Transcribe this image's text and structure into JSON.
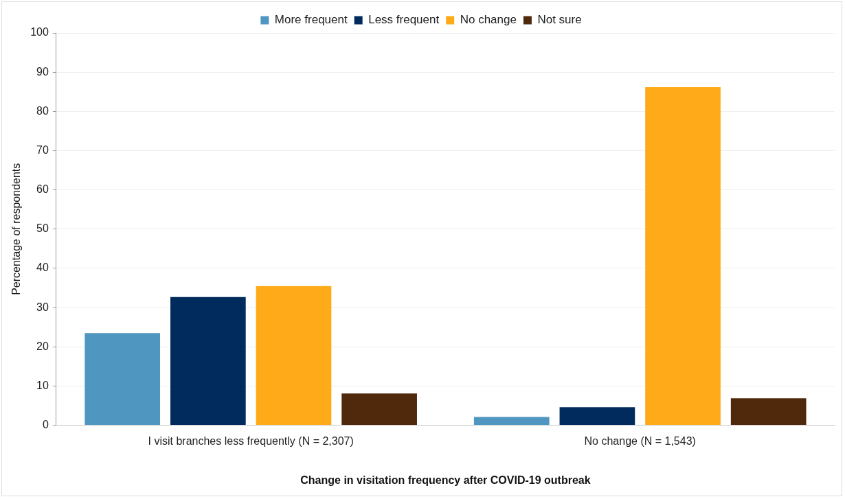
{
  "chart_data": {
    "type": "bar",
    "categories": [
      "I visit branches less frequently (N = 2,307)",
      "No change (N = 1,543)"
    ],
    "series": [
      {
        "name": "More frequent",
        "color": "#4f97c0",
        "values": [
          23.5,
          2.1
        ]
      },
      {
        "name": "Less frequent",
        "color": "#002b5c",
        "values": [
          32.7,
          4.6
        ]
      },
      {
        "name": "No change",
        "color": "#ffab19",
        "values": [
          35.5,
          86.2
        ]
      },
      {
        "name": "Not sure",
        "color": "#50280c",
        "values": [
          8.1,
          6.9
        ]
      }
    ],
    "xlabel": "Change in visitation frequency after COVID-19 outbreak",
    "ylabel": "Percentage of respondents",
    "ylim": [
      0,
      100
    ],
    "yticks": [
      0,
      10,
      20,
      30,
      40,
      50,
      60,
      70,
      80,
      90,
      100
    ],
    "grid": "y",
    "legend": "top"
  }
}
